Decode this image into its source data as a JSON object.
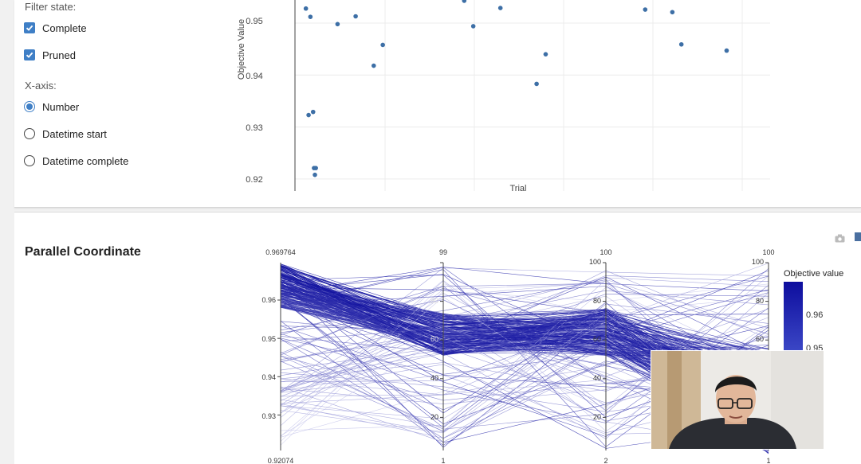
{
  "sidebar": {
    "filter_label": "Filter state:",
    "filter_options": [
      {
        "label": "Complete",
        "checked": true
      },
      {
        "label": "Pruned",
        "checked": true
      }
    ],
    "xaxis_label": "X-axis:",
    "xaxis_options": [
      {
        "label": "Number",
        "selected": true
      },
      {
        "label": "Datetime start",
        "selected": false
      },
      {
        "label": "Datetime complete",
        "selected": false
      }
    ]
  },
  "history_plot": {
    "y_label": "Objective Value",
    "x_label": "Trial",
    "y_ticks": [
      "0.95",
      "0.94",
      "0.93",
      "0.92"
    ]
  },
  "parallel_coordinate": {
    "title": "Parallel Coordinate",
    "axis_top_labels": [
      "0.969764",
      "99",
      "100",
      "100"
    ],
    "axis_bottom_labels": [
      "0.92074",
      "1",
      "2",
      "1"
    ],
    "objective_ticks": [
      "0.96",
      "0.95",
      "0.94",
      "0.93"
    ],
    "param_ticks": [
      "100",
      "80",
      "60",
      "40",
      "20"
    ],
    "colorbar_title": "Objective value",
    "colorbar_ticks": [
      "0.96",
      "0.95"
    ]
  },
  "colors": {
    "accent": "#3f7fc6",
    "line": "#0d0d9e",
    "point": "#3d6fa6"
  },
  "chart_data": [
    {
      "type": "scatter",
      "title": "",
      "xlabel": "Trial",
      "ylabel": "Objective Value",
      "ylim": [
        0.9172,
        0.9588
      ],
      "x": [
        0.5,
        0.8,
        1.0,
        1.3,
        1.4,
        1.5,
        1.6,
        4.0,
        6.0,
        8.0,
        9.0,
        18.0,
        19.0,
        22.0,
        26.0,
        27.0,
        38.0,
        41.0,
        42.0,
        47.0
      ],
      "y": [
        0.9528,
        0.9323,
        0.9512,
        0.9329,
        0.9221,
        0.9208,
        0.9221,
        0.9498,
        0.9513,
        0.9418,
        0.9458,
        0.9543,
        0.9494,
        0.9529,
        0.9383,
        0.944,
        0.9526,
        0.9521,
        0.9459,
        0.9447
      ]
    },
    {
      "type": "parallel_coordinates",
      "title": "Parallel Coordinate",
      "axes": [
        {
          "range": [
            0.92074,
            0.969764
          ],
          "ticks": [
            0.93,
            0.94,
            0.95,
            0.96
          ]
        },
        {
          "range": [
            1,
            99
          ],
          "ticks": [
            20,
            40,
            60,
            80
          ]
        },
        {
          "range": [
            2,
            100
          ],
          "ticks": [
            20,
            40,
            60,
            80,
            100
          ]
        },
        {
          "range": [
            1,
            100
          ],
          "ticks": [
            20,
            40,
            60,
            80,
            100
          ]
        }
      ],
      "colorbar": {
        "title": "Objective value",
        "ticks": [
          0.95,
          0.96
        ]
      }
    }
  ]
}
